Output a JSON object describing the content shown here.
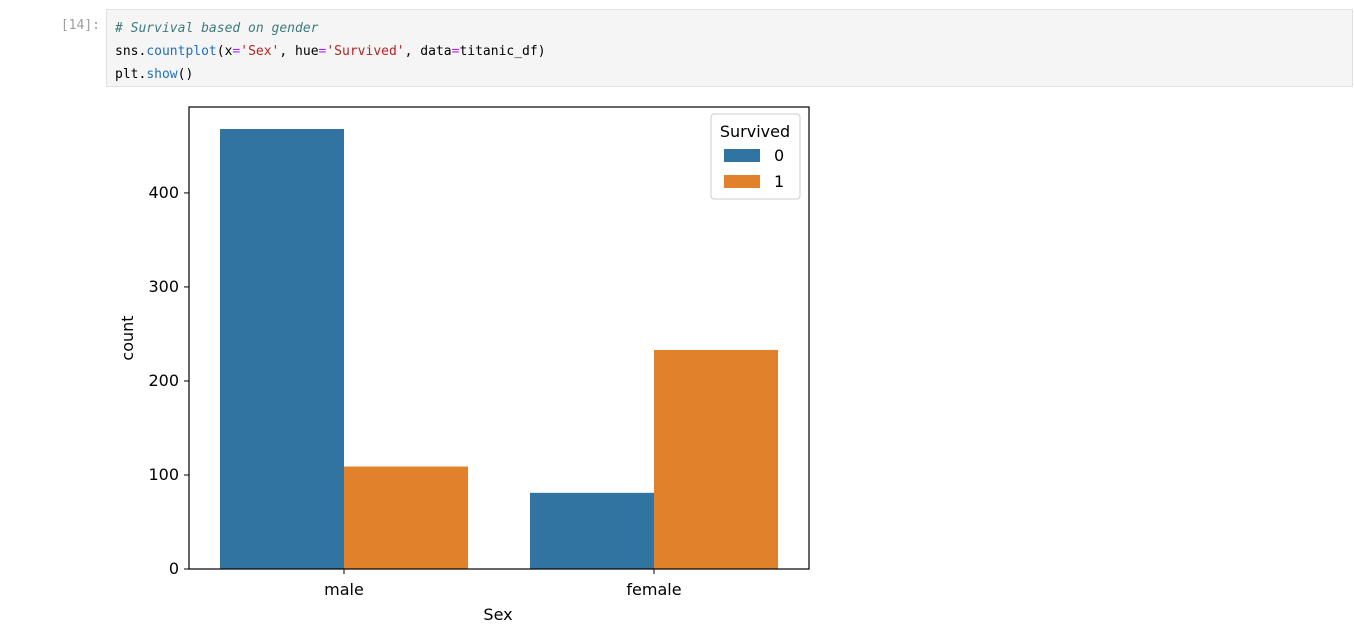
{
  "cell": {
    "prompt": "[14]:",
    "code": {
      "comment": "# Survival based on gender",
      "line2": {
        "obj": "sns.",
        "func": "countplot",
        "p1": "(x",
        "eq1": "=",
        "s1": "'Sex'",
        "p2": ", hue",
        "eq2": "=",
        "s2": "'Survived'",
        "p3": ", data",
        "eq3": "=",
        "p4": "titanic_df)"
      },
      "line3": {
        "obj": "plt.",
        "func": "show",
        "p1": "()"
      }
    }
  },
  "chart_data": {
    "type": "bar",
    "categories": [
      "male",
      "female"
    ],
    "series": [
      {
        "name": "0",
        "values": [
          468,
          81
        ],
        "color": "#3274a1"
      },
      {
        "name": "1",
        "values": [
          109,
          233
        ],
        "color": "#e1812c"
      }
    ],
    "title": "",
    "xlabel": "Sex",
    "ylabel": "count",
    "ylim": [
      0,
      491.4
    ],
    "yticks": [
      0,
      100,
      200,
      300,
      400
    ],
    "grid": false,
    "legend": {
      "title": "Survived",
      "position": "top-right"
    }
  }
}
